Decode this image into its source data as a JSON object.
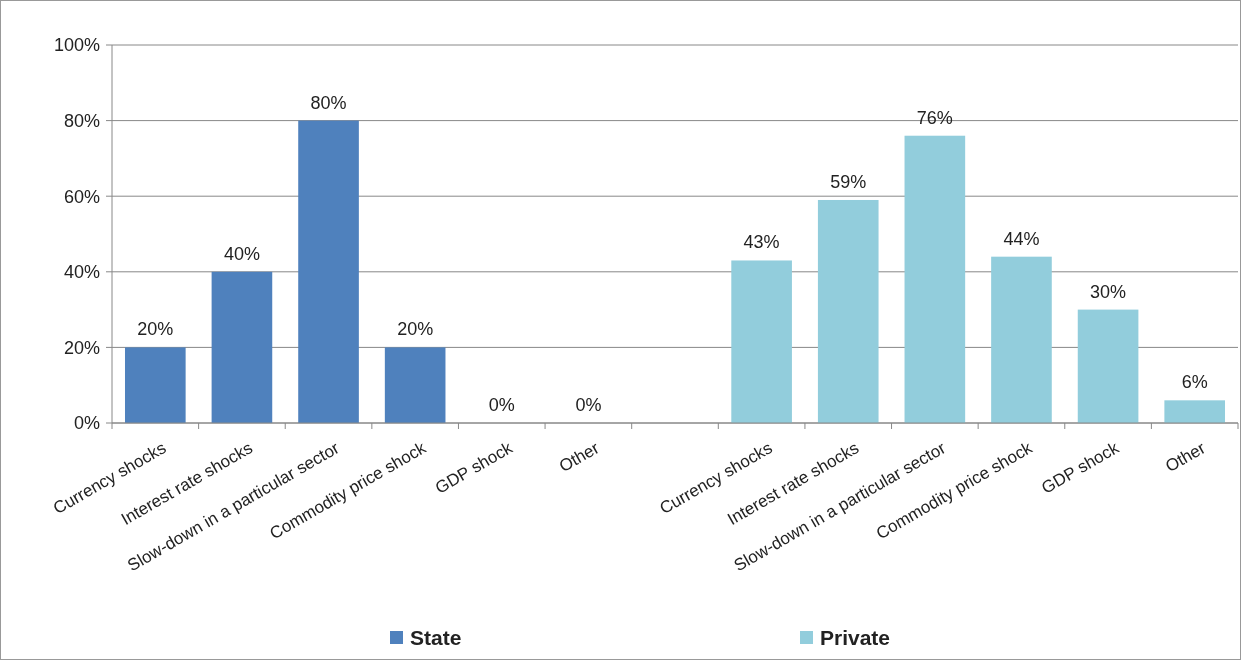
{
  "chart_data": {
    "type": "bar",
    "categories": [
      "Currency shocks",
      "Interest rate shocks",
      "Slow-down in a particular sector",
      "Commodity price shock",
      "GDP shock",
      "Other",
      null,
      "Currency shocks",
      "Interest rate shocks",
      "Slow-down in a particular sector",
      "Commodity price shock",
      "GDP shock",
      "Other"
    ],
    "series": [
      {
        "name": "State",
        "color": "#4f81bd",
        "values": [
          20,
          40,
          80,
          20,
          0,
          0,
          null,
          null,
          null,
          null,
          null,
          null,
          null
        ],
        "value_labels": [
          "20%",
          "40%",
          "80%",
          "20%",
          "0%",
          "0%",
          null,
          null,
          null,
          null,
          null,
          null,
          null
        ]
      },
      {
        "name": "Private",
        "color": "#92cddc",
        "values": [
          null,
          null,
          null,
          null,
          null,
          null,
          null,
          43,
          59,
          76,
          44,
          30,
          6
        ],
        "value_labels": [
          null,
          null,
          null,
          null,
          null,
          null,
          null,
          "43%",
          "59%",
          "76%",
          "44%",
          "30%",
          "6%"
        ]
      }
    ],
    "ylim": [
      0,
      100
    ],
    "yticks": [
      {
        "value": 0,
        "label": "0%"
      },
      {
        "value": 20,
        "label": "20%"
      },
      {
        "value": 40,
        "label": "40%"
      },
      {
        "value": 60,
        "label": "60%"
      },
      {
        "value": 80,
        "label": "80%"
      },
      {
        "value": 100,
        "label": "100%"
      }
    ],
    "grid": "y",
    "legend": "bottom"
  }
}
